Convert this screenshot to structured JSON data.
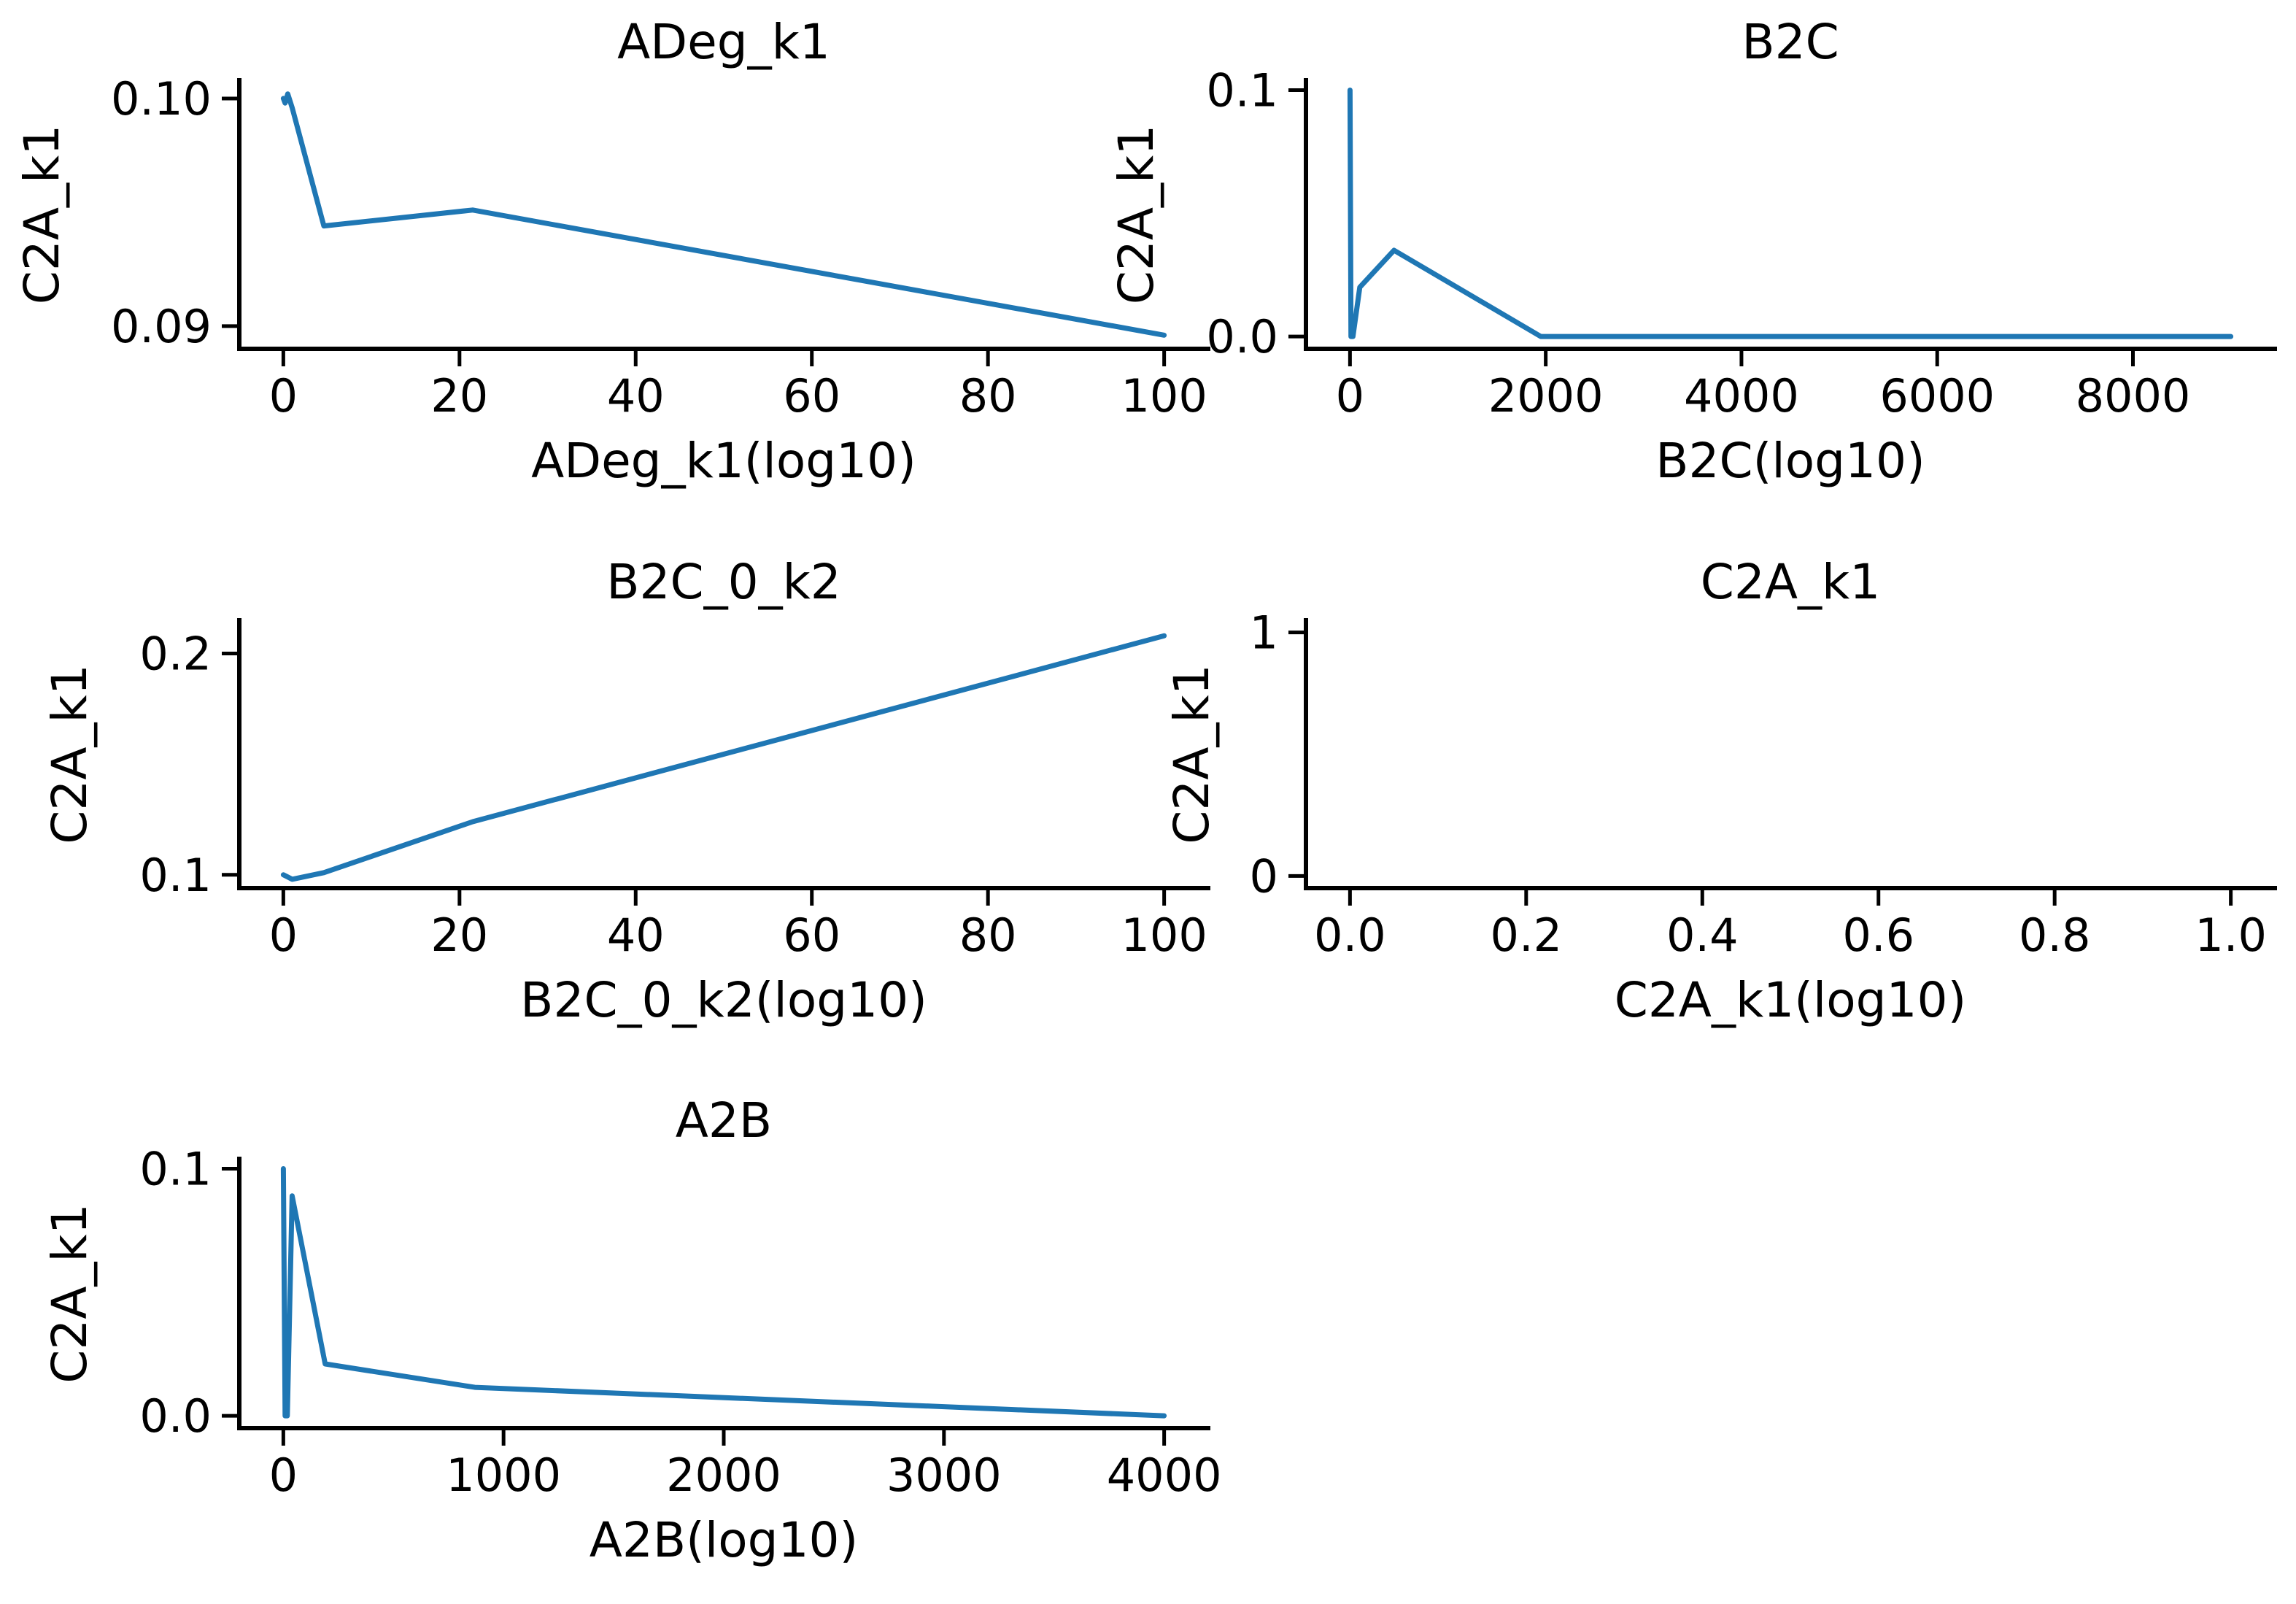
{
  "chart_data": [
    {
      "type": "line",
      "title": "ADeg_k1",
      "xlabel": "ADeg_k1(log10)",
      "ylabel": "C2A_k1",
      "xlim": [
        -5,
        105
      ],
      "ylim": [
        0.089,
        0.1008
      ],
      "xticks": [
        0,
        20,
        40,
        60,
        80,
        100
      ],
      "xtick_labels": [
        "0",
        "20",
        "40",
        "60",
        "80",
        "100"
      ],
      "yticks": [
        0.09,
        0.1
      ],
      "ytick_labels": [
        "0.09",
        "0.10"
      ],
      "series": [
        {
          "x": [
            0,
            0.2,
            0.5,
            1.0,
            4.6,
            21.5,
            100
          ],
          "y": [
            0.1,
            0.0998,
            0.1002,
            0.0996,
            0.0944,
            0.0951,
            0.0896
          ]
        }
      ],
      "grid": false,
      "legend": "none"
    },
    {
      "type": "line",
      "title": "B2C",
      "xlabel": "B2C(log10)",
      "ylabel": "C2A_k1",
      "xlim": [
        -450,
        9450
      ],
      "ylim": [
        -0.005,
        0.104
      ],
      "xticks": [
        0,
        2000,
        4000,
        6000,
        8000
      ],
      "xtick_labels": [
        "0",
        "2000",
        "4000",
        "6000",
        "8000"
      ],
      "yticks": [
        0.0,
        0.1
      ],
      "ytick_labels": [
        "0.0",
        "0.1"
      ],
      "series": [
        {
          "x": [
            0,
            10,
            30,
            100,
            450,
            1950,
            9000
          ],
          "y": [
            0.1,
            0.0,
            0.0,
            0.02,
            0.035,
            0.0,
            0.0
          ]
        }
      ],
      "grid": false,
      "legend": "none"
    },
    {
      "type": "line",
      "title": "B2C_0_k2",
      "xlabel": "B2C_0_k2(log10)",
      "ylabel": "C2A_k1",
      "xlim": [
        -5,
        105
      ],
      "ylim": [
        0.094,
        0.215
      ],
      "xticks": [
        0,
        20,
        40,
        60,
        80,
        100
      ],
      "xtick_labels": [
        "0",
        "20",
        "40",
        "60",
        "80",
        "100"
      ],
      "yticks": [
        0.1,
        0.2
      ],
      "ytick_labels": [
        "0.1",
        "0.2"
      ],
      "series": [
        {
          "x": [
            0,
            0.5,
            1.0,
            4.6,
            21.5,
            100
          ],
          "y": [
            0.1,
            0.099,
            0.098,
            0.101,
            0.124,
            0.208
          ]
        }
      ],
      "grid": false,
      "legend": "none"
    },
    {
      "type": "line",
      "title": "C2A_k1",
      "xlabel": "C2A_k1(log10)",
      "ylabel": "C2A_k1",
      "xlim": [
        -0.05,
        1.05
      ],
      "ylim": [
        -0.05,
        1.05
      ],
      "xticks": [
        0.0,
        0.2,
        0.4,
        0.6,
        0.8,
        1.0
      ],
      "xtick_labels": [
        "0.0",
        "0.2",
        "0.4",
        "0.6",
        "0.8",
        "1.0"
      ],
      "yticks": [
        0,
        1
      ],
      "ytick_labels": [
        "0",
        "1"
      ],
      "series": [
        {
          "x": [],
          "y": []
        }
      ],
      "grid": false,
      "legend": "none"
    },
    {
      "type": "line",
      "title": "A2B",
      "xlabel": "A2B(log10)",
      "ylabel": "C2A_k1",
      "xlim": [
        -200,
        4200
      ],
      "ylim": [
        -0.005,
        0.104
      ],
      "xticks": [
        0,
        1000,
        2000,
        3000,
        4000
      ],
      "xtick_labels": [
        "0",
        "1000",
        "2000",
        "3000",
        "4000"
      ],
      "yticks": [
        0.0,
        0.1
      ],
      "ytick_labels": [
        "0.0",
        "0.1"
      ],
      "series": [
        {
          "x": [
            0,
            8,
            18,
            40,
            190,
            870,
            4000
          ],
          "y": [
            0.1,
            0.0,
            0.0,
            0.089,
            0.021,
            0.0115,
            0.0
          ]
        }
      ],
      "grid": false,
      "legend": "none"
    }
  ],
  "colors": {
    "line": "#1f77b4",
    "axis": "#000000",
    "background": "#ffffff"
  }
}
